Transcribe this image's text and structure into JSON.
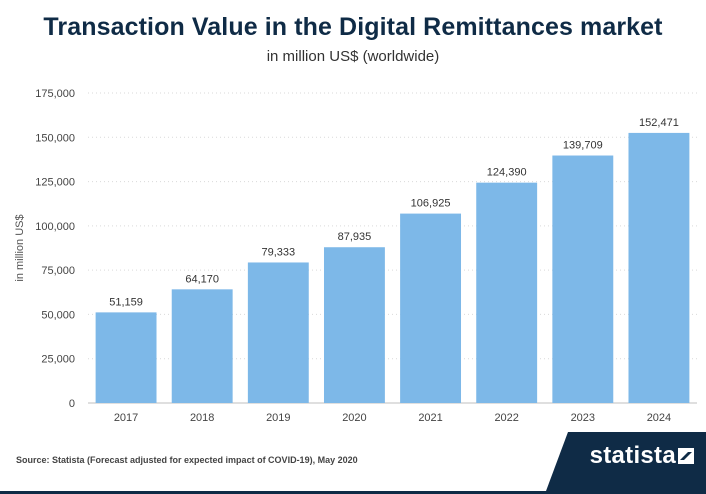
{
  "header": {
    "title": "Transaction Value in the Digital Remittances market",
    "subtitle": "in million US$ (worldwide)"
  },
  "footer": {
    "source": "Source: Statista (Forecast adjusted for expected impact of COVID-19), May 2020",
    "logo": "statista"
  },
  "colors": {
    "bar": "#7db8e8",
    "title": "#0f2b46",
    "brand": "#0f2b46"
  },
  "chart_data": {
    "type": "bar",
    "title": "Transaction Value in the Digital Remittances market",
    "subtitle": "in million US$ (worldwide)",
    "xlabel": "",
    "ylabel": "in million US$",
    "categories": [
      "2017",
      "2018",
      "2019",
      "2020",
      "2021",
      "2022",
      "2023",
      "2024"
    ],
    "values": [
      51159,
      64170,
      79333,
      87935,
      106925,
      124390,
      139709,
      152471
    ],
    "value_labels": [
      "51,159",
      "64,170",
      "79,333",
      "87,935",
      "106,925",
      "124,390",
      "139,709",
      "152,471"
    ],
    "ylim": [
      0,
      175000
    ],
    "yticks": [
      0,
      25000,
      50000,
      75000,
      100000,
      125000,
      150000,
      175000
    ],
    "ytick_labels": [
      "0",
      "25,000",
      "50,000",
      "75,000",
      "100,000",
      "125,000",
      "150,000",
      "175,000"
    ],
    "grid": true,
    "legend": "none"
  }
}
